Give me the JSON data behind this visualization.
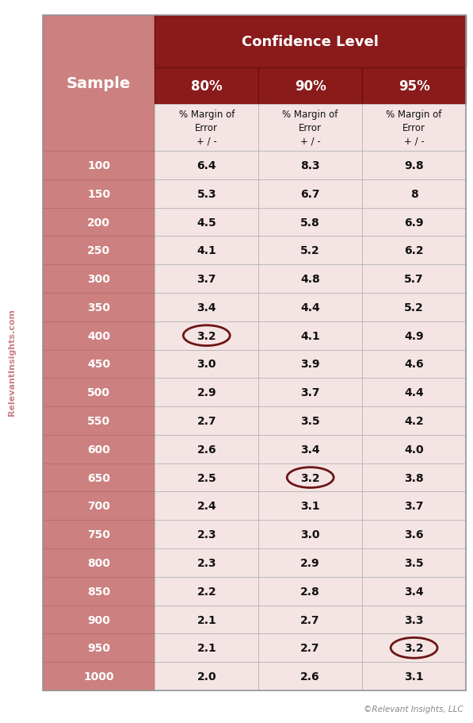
{
  "title": "Confidence Level",
  "col_header_label": "Sample",
  "confidence_levels": [
    "80%",
    "90%",
    "95%"
  ],
  "samples": [
    100,
    150,
    200,
    250,
    300,
    350,
    400,
    450,
    500,
    550,
    600,
    650,
    700,
    750,
    800,
    850,
    900,
    950,
    1000
  ],
  "values_80": [
    "6.4",
    "5.3",
    "4.5",
    "4.1",
    "3.7",
    "3.4",
    "3.2",
    "3.0",
    "2.9",
    "2.7",
    "2.6",
    "2.5",
    "2.4",
    "2.3",
    "2.3",
    "2.2",
    "2.1",
    "2.1",
    "2.0"
  ],
  "values_90": [
    "8.3",
    "6.7",
    "5.8",
    "5.2",
    "4.8",
    "4.4",
    "4.1",
    "3.9",
    "3.7",
    "3.5",
    "3.4",
    "3.2",
    "3.1",
    "3.0",
    "2.9",
    "2.8",
    "2.7",
    "2.7",
    "2.6"
  ],
  "values_95": [
    "9.8",
    "8",
    "6.9",
    "6.2",
    "5.7",
    "5.2",
    "4.9",
    "4.6",
    "4.4",
    "4.2",
    "4.0",
    "3.8",
    "3.7",
    "3.6",
    "3.5",
    "3.4",
    "3.3",
    "3.2",
    "3.1"
  ],
  "circle_cells": [
    [
      6,
      0
    ],
    [
      11,
      1
    ],
    [
      17,
      2
    ]
  ],
  "dark_red": "#8B1A1A",
  "medium_pink": "#CC8080",
  "light_pink": "#F5E4E4",
  "white": "#FFFFFF",
  "dark_text": "#111111",
  "white_text": "#FFFFFF",
  "copyright": "©Relevant Insights, LLC",
  "watermark": "RelevantInsights.com",
  "fig_width": 5.97,
  "fig_height": 9.12,
  "dpi": 100
}
